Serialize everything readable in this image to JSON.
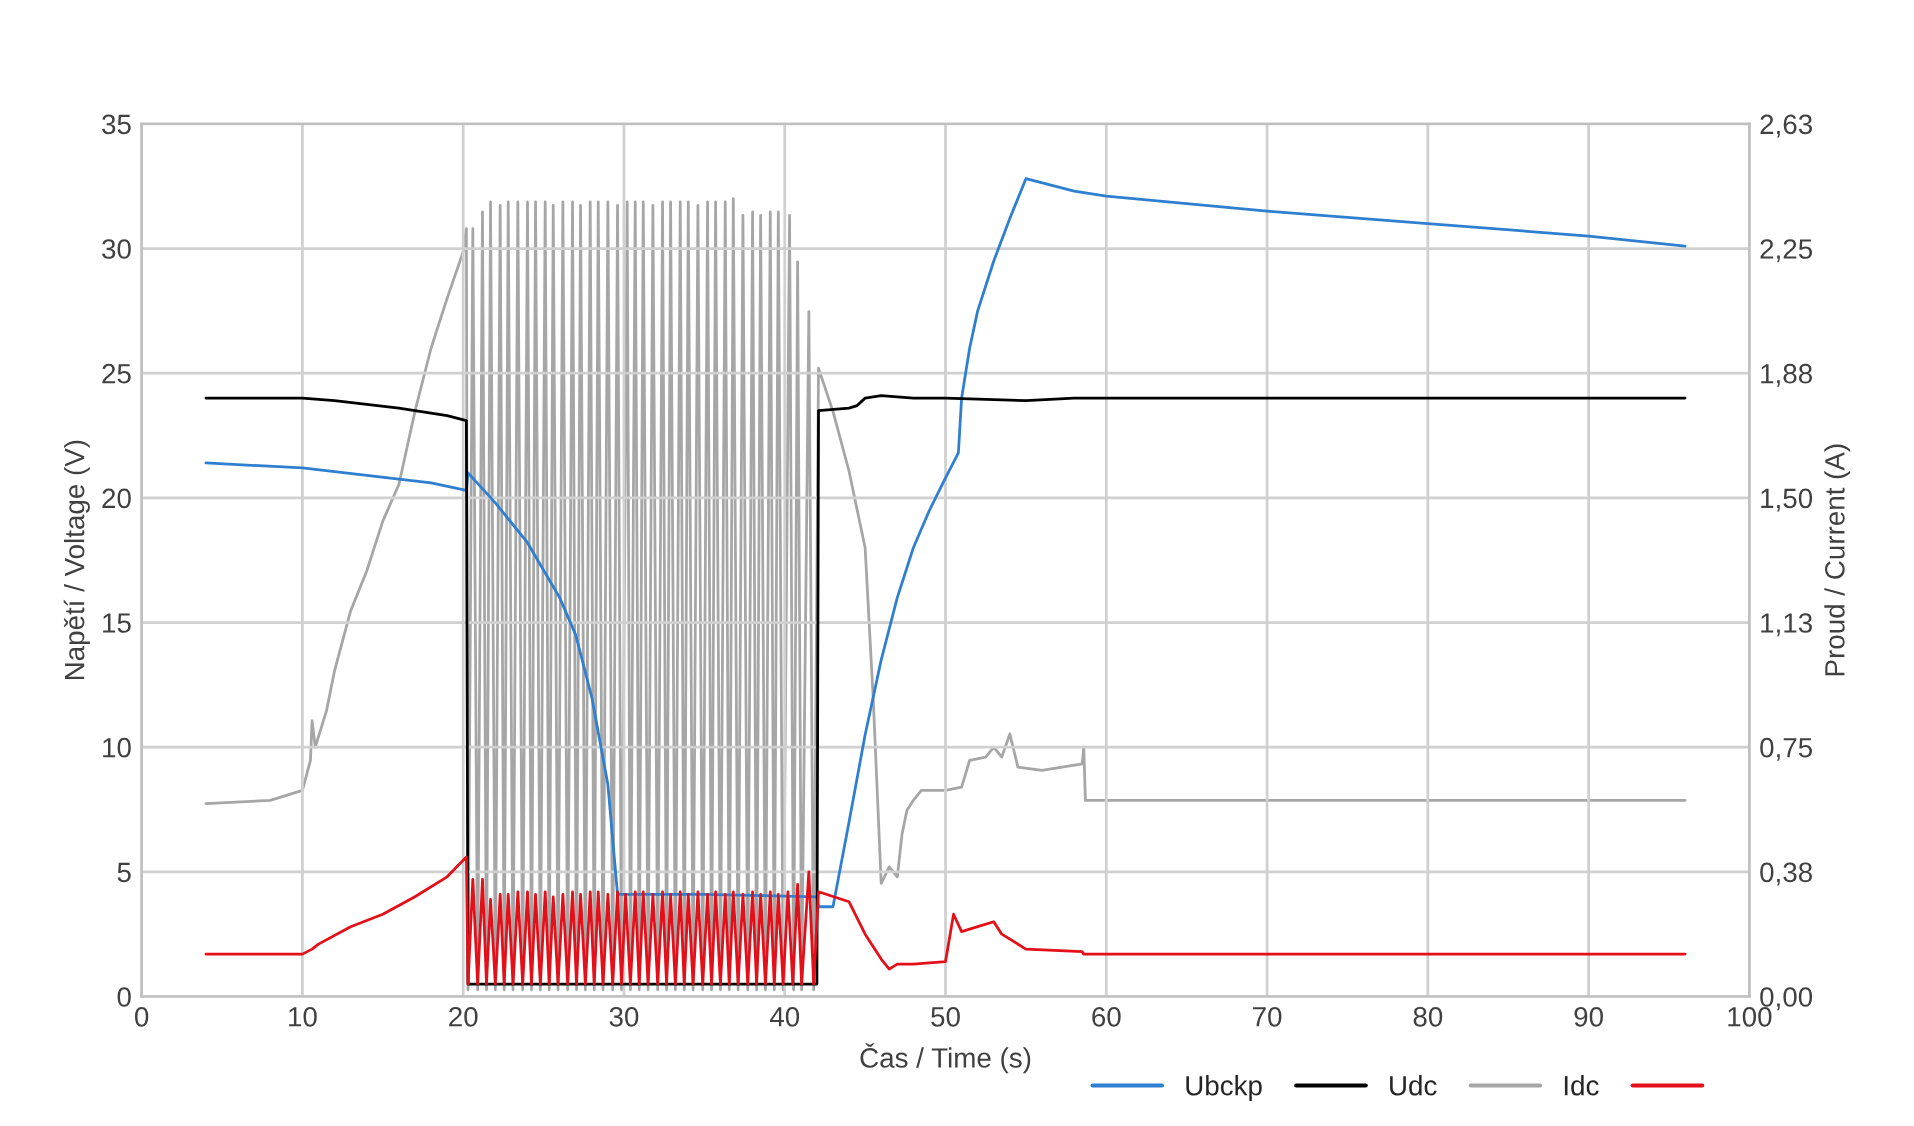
{
  "chart_data": {
    "type": "line",
    "xlabel": "Čas / Time (s)",
    "ylabel": "Napětí / Voltage (V)",
    "y2label": "Proud / Current (A)",
    "xlim": [
      0,
      100
    ],
    "xticks": [
      0,
      10,
      20,
      30,
      40,
      50,
      60,
      70,
      80,
      90,
      100
    ],
    "ylim": [
      0,
      35
    ],
    "yticks": [
      0,
      5,
      10,
      15,
      20,
      25,
      30,
      35
    ],
    "y2lim": [
      0,
      2.625
    ],
    "y2ticks": [
      {
        "value": 0,
        "label": "0,00"
      },
      {
        "value": 0.375,
        "label": "0,38"
      },
      {
        "value": 0.75,
        "label": "0,75"
      },
      {
        "value": 1.125,
        "label": "1,13"
      },
      {
        "value": 1.5,
        "label": "1,50"
      },
      {
        "value": 1.875,
        "label": "1,88"
      },
      {
        "value": 2.25,
        "label": "2,25"
      },
      {
        "value": 2.625,
        "label": "2,63"
      }
    ],
    "grid": true,
    "legend": "bottom right",
    "marker": "none",
    "line_style": "solid",
    "series": [
      {
        "name": "Ubckp",
        "color": "#2f7fd0",
        "x": [
          4,
          10,
          14,
          18,
          20.2,
          20.3,
          22,
          24,
          26,
          27,
          28,
          29,
          29.6,
          35,
          42,
          42.1,
          43,
          44,
          45,
          46,
          47,
          48,
          49,
          50,
          50.8,
          51,
          51.5,
          52,
          53,
          54,
          55,
          58,
          60,
          70,
          80,
          90,
          96
        ],
        "values": [
          21.4,
          21.2,
          20.9,
          20.6,
          20.3,
          21.0,
          19.8,
          18.2,
          16.0,
          14.5,
          12.0,
          8.5,
          4.1,
          4.1,
          4.0,
          3.6,
          3.6,
          7.0,
          10.5,
          13.5,
          16.0,
          18.0,
          19.5,
          20.8,
          21.8,
          24.0,
          26.0,
          27.5,
          29.5,
          31.2,
          32.8,
          32.3,
          32.1,
          31.5,
          31.0,
          30.5,
          30.1
        ]
      },
      {
        "name": "Udc",
        "color": "#000000",
        "x": [
          4,
          10,
          12,
          16,
          19,
          20.2,
          20.3,
          42.0,
          42.1,
          44,
          44.5,
          45,
          46,
          48,
          50,
          55,
          58,
          96
        ],
        "values": [
          24.0,
          24.0,
          23.9,
          23.6,
          23.3,
          23.1,
          0.5,
          0.5,
          23.5,
          23.6,
          23.7,
          24.0,
          24.1,
          24.0,
          24.0,
          23.9,
          24.0,
          24.0
        ]
      },
      {
        "name": "Idc",
        "color": "#a6a6a6",
        "axis": "y2",
        "x": [
          4,
          8,
          10,
          10.5,
          10.6,
          10.8,
          11.5,
          12,
          13,
          14,
          15,
          16,
          17,
          18,
          19,
          20,
          20.2,
          20.3,
          20.6,
          20.9,
          21.2,
          21.45,
          21.7,
          22.0,
          22.3,
          22.55,
          22.8,
          23.1,
          23.4,
          23.7,
          24.0,
          24.25,
          24.5,
          24.8,
          25.1,
          25.35,
          25.6,
          25.9,
          26.2,
          26.5,
          26.8,
          27.05,
          27.3,
          27.6,
          27.9,
          28.15,
          28.4,
          28.7,
          29.0,
          29.3,
          29.6,
          29.85,
          30.2,
          30.4,
          30.7,
          30.95,
          31.2,
          31.5,
          31.8,
          32.1,
          32.4,
          32.65,
          32.9,
          33.2,
          33.5,
          33.75,
          34.0,
          34.3,
          34.6,
          34.9,
          35.2,
          35.45,
          35.7,
          36.0,
          36.3,
          36.55,
          36.8,
          37.1,
          37.4,
          37.7,
          38.0,
          38.25,
          38.5,
          38.8,
          39.1,
          39.35,
          39.6,
          39.9,
          40.3,
          40.55,
          40.8,
          41.05,
          41.5,
          41.8,
          42.1,
          43,
          44,
          45,
          45.5,
          46,
          46.5,
          47,
          47.3,
          47.6,
          48,
          48.5,
          50,
          51,
          51.5,
          52.5,
          53,
          53.5,
          54,
          54.5,
          56,
          58.5,
          58.6,
          58.7,
          96
        ],
        "values": [
          0.58,
          0.59,
          0.62,
          0.71,
          0.83,
          0.75,
          0.86,
          0.98,
          1.16,
          1.28,
          1.43,
          1.54,
          1.76,
          1.95,
          2.1,
          2.24,
          2.31,
          0.02,
          2.31,
          0.02,
          2.36,
          0.02,
          2.39,
          0.02,
          2.38,
          0.02,
          2.39,
          0.02,
          2.39,
          0.02,
          2.39,
          0.02,
          2.39,
          0.02,
          2.39,
          0.02,
          2.38,
          0.02,
          2.39,
          0.02,
          2.39,
          0.02,
          2.38,
          0.02,
          2.39,
          0.02,
          2.39,
          0.02,
          2.39,
          0.02,
          2.38,
          0.02,
          2.39,
          0.02,
          2.39,
          0.02,
          2.39,
          0.02,
          2.38,
          0.02,
          2.39,
          0.02,
          2.39,
          0.02,
          2.39,
          0.02,
          2.39,
          0.02,
          2.38,
          0.02,
          2.39,
          0.02,
          2.39,
          0.02,
          2.39,
          0.02,
          2.4,
          0.02,
          2.35,
          0.02,
          2.36,
          0.02,
          2.35,
          0.02,
          2.36,
          0.02,
          2.36,
          0.02,
          2.35,
          0.02,
          2.21,
          0.02,
          2.06,
          0.02,
          1.89,
          1.76,
          1.58,
          1.35,
          0.9,
          0.34,
          0.39,
          0.36,
          0.49,
          0.56,
          0.59,
          0.62,
          0.62,
          0.63,
          0.71,
          0.72,
          0.75,
          0.72,
          0.79,
          0.69,
          0.68,
          0.7,
          0.75,
          0.59,
          0.59
        ]
      },
      {
        "color": "#e3101a",
        "x": [
          4,
          10,
          10.6,
          11,
          13,
          15,
          17,
          19,
          20.2,
          20.3,
          20.6,
          20.9,
          21.2,
          21.45,
          21.7,
          22.0,
          22.3,
          22.55,
          22.8,
          23.1,
          23.4,
          23.7,
          24.0,
          24.25,
          24.5,
          24.8,
          25.1,
          25.35,
          25.6,
          25.9,
          26.2,
          26.5,
          26.8,
          27.05,
          27.3,
          27.6,
          27.9,
          28.15,
          28.4,
          28.7,
          29.0,
          29.3,
          29.6,
          29.85,
          30.1,
          30.4,
          30.7,
          30.95,
          31.2,
          31.5,
          31.8,
          32.1,
          32.4,
          32.65,
          32.9,
          33.2,
          33.5,
          33.75,
          34.0,
          34.3,
          34.6,
          34.9,
          35.2,
          35.45,
          35.7,
          36.0,
          36.3,
          36.55,
          36.8,
          37.1,
          37.4,
          37.7,
          38.0,
          38.25,
          38.5,
          38.8,
          39.1,
          39.35,
          39.6,
          39.9,
          40.2,
          40.5,
          40.8,
          41.05,
          41.5,
          41.8,
          42.1,
          44,
          45,
          46,
          46.5,
          47,
          48,
          50,
          50.5,
          51,
          52,
          53,
          53.5,
          55,
          58.5,
          58.6,
          96
        ],
        "values": [
          1.7,
          1.7,
          1.9,
          2.1,
          2.8,
          3.3,
          4.0,
          4.8,
          5.6,
          0.5,
          4.7,
          0.5,
          4.7,
          0.5,
          3.9,
          0.5,
          4.1,
          0.5,
          4.1,
          0.5,
          4.2,
          0.5,
          4.2,
          0.5,
          4.1,
          0.5,
          4.2,
          0.5,
          4.0,
          0.5,
          4.1,
          0.5,
          4.2,
          0.5,
          4.1,
          0.5,
          4.2,
          0.5,
          4.2,
          0.5,
          4.1,
          0.5,
          4.2,
          0.5,
          4.1,
          0.5,
          4.2,
          0.5,
          4.2,
          0.5,
          4.1,
          0.5,
          4.2,
          0.5,
          4.1,
          0.5,
          4.2,
          0.5,
          4.1,
          0.5,
          4.2,
          0.5,
          4.1,
          0.5,
          4.2,
          0.5,
          4.1,
          0.5,
          4.2,
          0.5,
          4.1,
          0.5,
          4.2,
          0.5,
          4.1,
          0.5,
          4.2,
          0.5,
          4.1,
          0.5,
          4.2,
          0.5,
          4.5,
          0.5,
          5.0,
          0.5,
          4.2,
          3.8,
          2.5,
          1.5,
          1.1,
          1.3,
          1.3,
          1.4,
          3.3,
          2.6,
          2.8,
          3.0,
          2.5,
          1.9,
          1.8,
          1.7,
          1.7
        ]
      }
    ]
  }
}
